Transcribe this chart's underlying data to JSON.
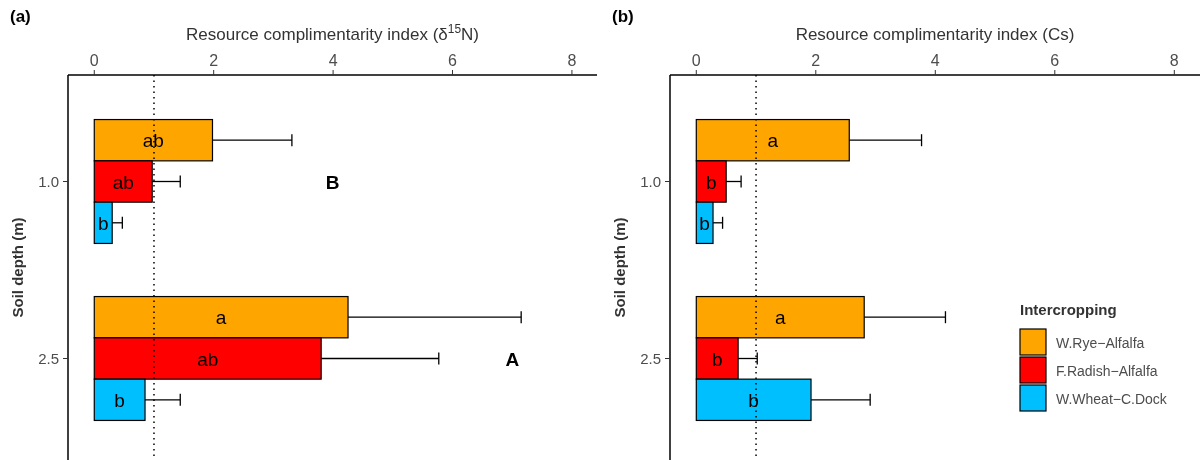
{
  "chart_data": [
    {
      "type": "bar",
      "orientation": "horizontal",
      "title": "(a)",
      "xlabel": "Resource complimentarity index (δ$^{15}$N)",
      "ylabel": "Soil depth (m)",
      "categories": [
        "1.0",
        "2.5"
      ],
      "xlim": [
        -0.44,
        8.42
      ],
      "xticks": [
        0,
        2,
        4,
        6,
        8
      ],
      "legend": false,
      "series": [
        {
          "color": "#ffa500",
          "values": [
            1.98,
            4.25
          ],
          "errors": [
            [
              1.98,
              3.31
            ],
            [
              4.25,
              7.15
            ]
          ],
          "value_labels": [
            "ab",
            "a"
          ]
        },
        {
          "color": "#ff0000",
          "values": [
            0.97,
            3.8
          ],
          "errors": [
            [
              0.97,
              1.44
            ],
            [
              3.8,
              5.77
            ]
          ],
          "value_labels": [
            "ab",
            "ab"
          ]
        },
        {
          "color": "#00bfff",
          "values": [
            0.3,
            0.85
          ],
          "errors": [
            [
              0.3,
              0.47
            ],
            [
              0.85,
              1.44
            ]
          ],
          "value_labels": [
            "b",
            "b"
          ]
        }
      ],
      "ref_lines": [
        {
          "axis": "x",
          "value": 1,
          "line_style": "dotted"
        }
      ],
      "annotations": [
        "B",
        "A"
      ]
    },
    {
      "type": "bar",
      "orientation": "horizontal",
      "title": "(b)",
      "xlabel": "Resource complimentarity index (Cs)",
      "ylabel": "Soil depth (m)",
      "categories": [
        "1.0",
        "2.5"
      ],
      "xlim": [
        -0.44,
        8.43
      ],
      "xticks": [
        0,
        2,
        4,
        6,
        8
      ],
      "legend": "bottom right",
      "legend_title": "Intercropping",
      "series": [
        {
          "name": "W.Rye−Alfalfa",
          "color": "#ffa500",
          "values": [
            2.56,
            2.81
          ],
          "errors": [
            [
              2.56,
              3.77
            ],
            [
              2.81,
              4.17
            ]
          ],
          "value_labels": [
            "a",
            "a"
          ]
        },
        {
          "name": "F.Radish−Alfalfa",
          "color": "#ff0000",
          "values": [
            0.5,
            0.7
          ],
          "errors": [
            [
              0.5,
              0.75
            ],
            [
              0.7,
              1.02
            ]
          ],
          "value_labels": [
            "b",
            "b"
          ]
        },
        {
          "name": "W.Wheat−C.Dock",
          "color": "#00bfff",
          "values": [
            0.28,
            1.92
          ],
          "errors": [
            [
              0.28,
              0.44
            ],
            [
              1.92,
              2.91
            ]
          ],
          "value_labels": [
            "b",
            "b"
          ]
        }
      ],
      "ref_lines": [
        {
          "axis": "x",
          "value": 1,
          "line_style": "dotted"
        }
      ]
    }
  ]
}
